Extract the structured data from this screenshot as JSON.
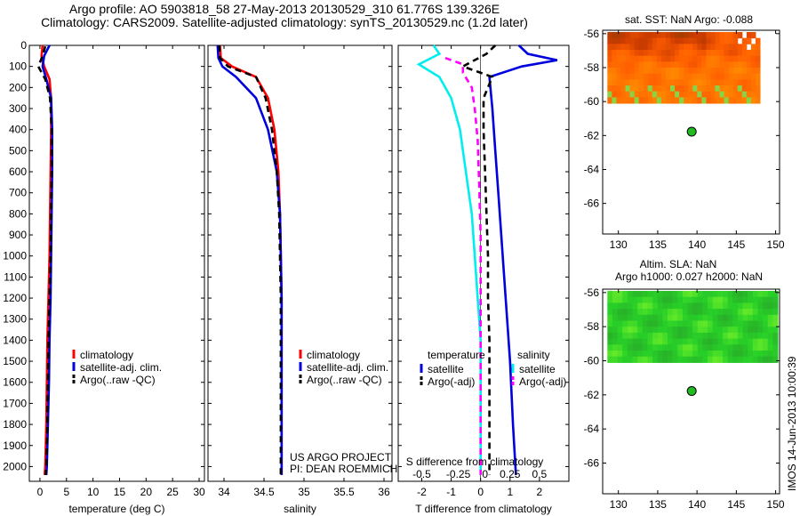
{
  "title_line1": "Argo profile: AO 5903818_58 27-May-2013 20130529_310 61.776S 139.326E",
  "title_line2": "Climatology: CARS2009. Satellite-adjusted climatology: synTS_20130529.nc (1.2d later)",
  "timestamp": "IMOS 14-Jun-2013 10:00:39",
  "credit_line1": "US ARGO PROJECT",
  "credit_line2": "PI: DEAN ROEMMICH",
  "colors": {
    "climatology": "#ff0000",
    "satellite": "#0000dd",
    "argo": "#000000",
    "sat_salinity": "#00eeee",
    "argo_salinity": "#ff00ff"
  },
  "chart_data": [
    {
      "type": "line",
      "xlabel": "temperature (deg C)",
      "ylabel": "",
      "xlim": [
        -2,
        31
      ],
      "ylim": [
        2070,
        0
      ],
      "xticks": [
        0,
        5,
        10,
        15,
        20,
        25,
        30
      ],
      "yticks": [
        0,
        100,
        200,
        300,
        400,
        500,
        600,
        700,
        800,
        900,
        1000,
        1100,
        1200,
        1300,
        1400,
        1500,
        1600,
        1700,
        1800,
        1900,
        2000
      ],
      "legend": [
        "climatology",
        "satellite-adj. clim.",
        "Argo(..raw -QC)"
      ],
      "series": [
        {
          "name": "climatology",
          "color": "#ff0000",
          "x": [
            0.5,
            0.3,
            0.8,
            1.8,
            2.1,
            2.1,
            2.0,
            1.9,
            1.8,
            1.6,
            1.4,
            1.3,
            1.2,
            1.1,
            1.0,
            0.9
          ],
          "y": [
            0,
            50,
            100,
            160,
            250,
            400,
            600,
            800,
            1000,
            1200,
            1400,
            1600,
            1800,
            1900,
            2000,
            2040
          ]
        },
        {
          "name": "satellite-adj. clim.",
          "color": "#0000dd",
          "x": [
            1.8,
            0.8,
            0.5,
            1.2,
            2.1,
            2.3,
            2.3,
            2.2,
            2.1,
            2.0,
            1.8,
            1.7,
            1.5,
            1.4,
            1.3,
            1.2
          ],
          "y": [
            0,
            50,
            100,
            160,
            250,
            400,
            600,
            800,
            1000,
            1200,
            1400,
            1600,
            1800,
            1900,
            2000,
            2040
          ]
        },
        {
          "name": "Argo(..raw -QC)",
          "color": "#000000",
          "dashed": true,
          "x": [
            1.0,
            0.5,
            -0.3,
            1.0,
            1.9,
            2.2,
            2.2,
            2.1,
            2.0,
            1.8,
            1.6,
            1.5,
            1.4,
            1.3,
            1.2,
            1.1
          ],
          "y": [
            5,
            50,
            100,
            160,
            250,
            400,
            600,
            800,
            1000,
            1200,
            1400,
            1600,
            1800,
            1900,
            2000,
            2040
          ]
        }
      ]
    },
    {
      "type": "line",
      "xlabel": "salinity",
      "ylabel": "",
      "xlim": [
        33.8,
        36.1
      ],
      "ylim": [
        2070,
        0
      ],
      "xticks": [
        34,
        34.5,
        35,
        35.5,
        36
      ],
      "legend": [
        "climatology",
        "satellite-adj. clim.",
        "Argo(..raw -QC)"
      ],
      "series": [
        {
          "name": "climatology",
          "color": "#ff0000",
          "x": [
            33.95,
            33.96,
            34.1,
            34.4,
            34.55,
            34.63,
            34.68,
            34.7,
            34.71,
            34.72,
            34.72,
            34.72,
            34.72,
            34.72
          ],
          "y": [
            0,
            60,
            100,
            150,
            250,
            400,
            600,
            800,
            1000,
            1200,
            1400,
            1600,
            1800,
            2040
          ]
        },
        {
          "name": "satellite-adj. clim.",
          "color": "#0000dd",
          "x": [
            33.92,
            33.93,
            33.98,
            34.15,
            34.4,
            34.55,
            34.66,
            34.7,
            34.71,
            34.72,
            34.72,
            34.72,
            34.72,
            34.72
          ],
          "y": [
            0,
            60,
            100,
            150,
            250,
            400,
            600,
            800,
            1000,
            1200,
            1400,
            1600,
            1800,
            2040
          ]
        },
        {
          "name": "Argo(..raw -QC)",
          "color": "#000000",
          "dashed": true,
          "x": [
            33.94,
            33.95,
            34.05,
            34.4,
            34.52,
            34.6,
            34.66,
            34.69,
            34.7,
            34.71,
            34.71,
            34.71,
            34.71,
            34.71
          ],
          "y": [
            0,
            60,
            100,
            150,
            250,
            400,
            600,
            800,
            1000,
            1200,
            1400,
            1600,
            1800,
            2040
          ]
        }
      ]
    },
    {
      "type": "line",
      "xlabel": "T difference from climatology",
      "xlabel_top": "S difference from climatology",
      "ylabel": "",
      "xlim": [
        -2.8,
        3.0
      ],
      "ylim": [
        2070,
        0
      ],
      "xticks": [
        -2,
        -1,
        0,
        1,
        2
      ],
      "xticks_s": [
        "-0.5",
        "-0.25",
        "0",
        "0.25",
        "0.5"
      ],
      "legend_headers": [
        "temperature",
        "salinity"
      ],
      "legend": [
        "satellite",
        "Argo(-adj)",
        "satellite",
        "Argo(-adj)"
      ],
      "series": [
        {
          "name": "temperature satellite",
          "color": "#0000dd",
          "x": [
            1.3,
            1.6,
            2.6,
            1.4,
            0.3,
            0.4,
            0.5,
            0.6,
            0.7,
            0.8,
            0.9,
            1.0,
            1.1,
            1.2
          ],
          "y": [
            0,
            40,
            70,
            100,
            150,
            300,
            500,
            700,
            900,
            1100,
            1300,
            1500,
            1800,
            2040
          ]
        },
        {
          "name": "temperature Argo(-adj)",
          "color": "#000000",
          "dashed": true,
          "x": [
            0.5,
            0.2,
            -0.6,
            0.4,
            0.1,
            0.1,
            0.15,
            0.2,
            0.25,
            0.25,
            0.3,
            0.3,
            0.3,
            0.3
          ],
          "y": [
            0,
            40,
            100,
            150,
            250,
            400,
            600,
            800,
            1000,
            1200,
            1400,
            1600,
            1800,
            2040
          ]
        },
        {
          "name": "salinity satellite",
          "color": "#00eeee",
          "x": [
            -1.6,
            -1.4,
            -2.1,
            -1.4,
            -1.0,
            -0.7,
            -0.5,
            -0.3,
            -0.2,
            -0.1,
            0.0,
            0.0,
            0.0,
            0.0
          ],
          "y": [
            0,
            40,
            90,
            150,
            250,
            400,
            600,
            800,
            1000,
            1200,
            1400,
            1600,
            1800,
            2040
          ]
        },
        {
          "name": "salinity Argo(-adj)",
          "color": "#ff00ff",
          "dashed": true,
          "x": [
            -1.2,
            -0.6,
            -0.6,
            -0.3,
            -0.2,
            -0.1,
            -0.05,
            0.0,
            0.0,
            0.0,
            0.0,
            0.0
          ],
          "y": [
            60,
            90,
            130,
            200,
            300,
            450,
            650,
            900,
            1200,
            1500,
            1800,
            2040
          ]
        }
      ]
    },
    {
      "type": "heatmap",
      "title": "sat. SST: NaN Argo: -0.088",
      "xlim": [
        128,
        150.5
      ],
      "ylim": [
        -67.8,
        -55.8
      ],
      "xticks": [
        130,
        135,
        140,
        145,
        150
      ],
      "yticks": [
        -56,
        -58,
        -60,
        -62,
        -64,
        -66
      ],
      "argo_position": [
        139.326,
        -61.776
      ]
    },
    {
      "type": "heatmap",
      "title": "Altim. SLA: NaN",
      "subtitle": "Argo h1000: 0.027 h2000: NaN",
      "xlim": [
        128,
        150.5
      ],
      "ylim": [
        -67.8,
        -55.8
      ],
      "xticks": [
        130,
        135,
        140,
        145,
        150
      ],
      "yticks": [
        -56,
        -58,
        -60,
        -62,
        -64,
        -66
      ],
      "argo_position": [
        139.326,
        -61.776
      ]
    }
  ]
}
